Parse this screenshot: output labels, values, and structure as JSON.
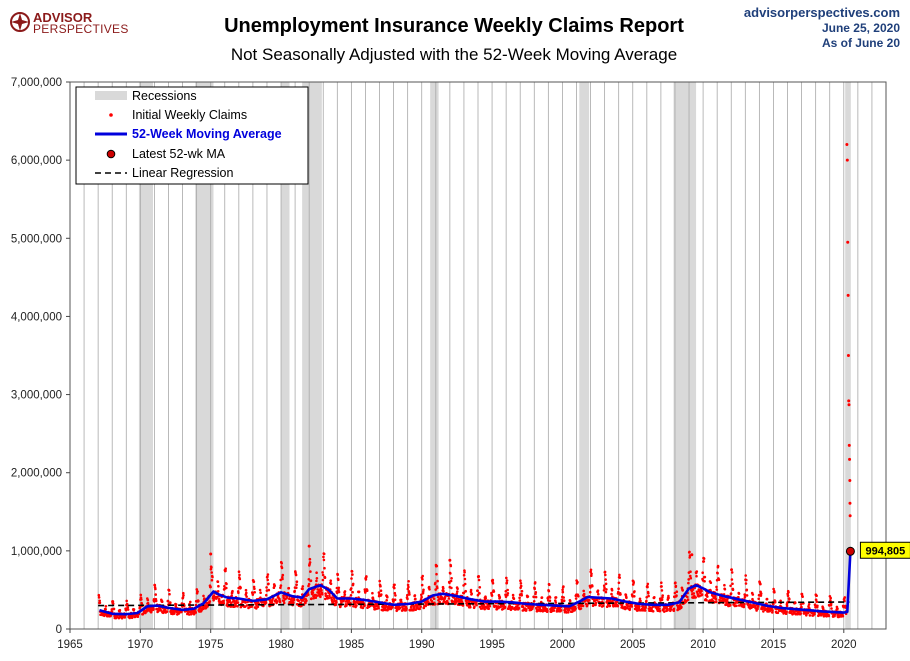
{
  "brand": {
    "logo_line1": "ADVISOR",
    "logo_line2": "PERSPECTIVES",
    "site": "advisorperspectives.com",
    "date": "June 25, 2020",
    "as_of": "As of June 20"
  },
  "colors": {
    "claims_dot": "#ff0000",
    "moving_average": "#0000dd",
    "recession_band": "#d9d9d9",
    "regression_line": "#000000",
    "latest_marker": "#cc0000",
    "callout_fill": "#ffff00",
    "logo": "#8b1a1a"
  },
  "chart_data": {
    "type": "scatter",
    "title": "Unemployment Insurance Weekly Claims Report",
    "subtitle": "Not Seasonally Adjusted with the 52-Week Moving Average",
    "xlim": [
      1965,
      2023
    ],
    "ylim": [
      0,
      7000000
    ],
    "x_ticks": [
      1965,
      1970,
      1975,
      1980,
      1985,
      1990,
      1995,
      2000,
      2005,
      2010,
      2015,
      2020
    ],
    "y_ticks": [
      0,
      1000000,
      2000000,
      3000000,
      4000000,
      5000000,
      6000000,
      7000000
    ],
    "y_tick_labels": [
      "0",
      "1,000,000",
      "2,000,000",
      "3,000,000",
      "4,000,000",
      "5,000,000",
      "6,000,000",
      "7,000,000"
    ],
    "grid": "vertical-annual",
    "legend_position": "top-left",
    "legend": [
      {
        "label": "Recessions",
        "symbol": "band"
      },
      {
        "label": "Initial Weekly Claims",
        "symbol": "dot"
      },
      {
        "label": "52-Week Moving Average",
        "symbol": "line"
      },
      {
        "label": "Latest 52-wk MA",
        "symbol": "marker"
      },
      {
        "label": "Linear Regression",
        "symbol": "dashed"
      }
    ],
    "recessions": [
      [
        1969.9,
        1970.9
      ],
      [
        1973.9,
        1975.2
      ],
      [
        1980.0,
        1980.6
      ],
      [
        1981.5,
        1982.9
      ],
      [
        1990.6,
        1991.2
      ],
      [
        2001.2,
        2001.9
      ],
      [
        2007.9,
        2009.5
      ],
      [
        2020.1,
        2020.5
      ]
    ],
    "moving_average": {
      "name": "52-Week Moving Average",
      "x": [
        1967.1,
        1968.0,
        1969.0,
        1969.8,
        1970.5,
        1971.2,
        1972.0,
        1973.0,
        1973.8,
        1974.5,
        1975.2,
        1975.6,
        1976.2,
        1977.0,
        1978.0,
        1979.0,
        1980.0,
        1980.8,
        1981.5,
        1982.0,
        1982.8,
        1983.4,
        1984.0,
        1985.0,
        1986.0,
        1987.0,
        1988.0,
        1989.0,
        1990.0,
        1990.8,
        1991.5,
        1992.5,
        1993.5,
        1994.5,
        1995.5,
        1996.5,
        1997.5,
        1998.5,
        1999.5,
        2000.5,
        2001.2,
        2001.8,
        2002.5,
        2003.5,
        2004.5,
        2005.5,
        2006.5,
        2007.5,
        2008.3,
        2009.0,
        2009.5,
        2010.0,
        2010.5,
        2011.5,
        2012.5,
        2013.5,
        2014.5,
        2015.5,
        2016.5,
        2017.5,
        2018.5,
        2019.5,
        2020.0,
        2020.25,
        2020.47
      ],
      "y": [
        240000,
        195000,
        190000,
        205000,
        290000,
        300000,
        270000,
        245000,
        260000,
        330000,
        480000,
        440000,
        400000,
        390000,
        360000,
        380000,
        470000,
        420000,
        400000,
        510000,
        560000,
        500000,
        390000,
        390000,
        370000,
        340000,
        310000,
        320000,
        350000,
        430000,
        450000,
        420000,
        380000,
        350000,
        350000,
        340000,
        320000,
        310000,
        300000,
        290000,
        350000,
        410000,
        400000,
        390000,
        350000,
        320000,
        310000,
        310000,
        340000,
        520000,
        560000,
        520000,
        470000,
        420000,
        380000,
        340000,
        300000,
        270000,
        255000,
        240000,
        225000,
        215000,
        210000,
        220000,
        994805
      ]
    },
    "regression": {
      "name": "Linear Regression",
      "x": [
        1967.0,
        2020.4
      ],
      "y": [
        300000,
        345000
      ]
    },
    "latest": {
      "x": 2020.47,
      "y": 994805,
      "label": "994,805"
    },
    "claims_spikes": {
      "name": "Initial Weekly Claims",
      "x": [
        1975.0,
        1982.0,
        1992.0,
        2009.2,
        2020.22,
        2020.25,
        2020.28,
        2020.31,
        2020.33,
        2020.35,
        2020.37,
        2020.39,
        2020.41,
        2020.43,
        2020.44,
        2020.45
      ],
      "y": [
        960000,
        1060000,
        880000,
        950000,
        6200000,
        6000000,
        4950000,
        4270000,
        3500000,
        2920000,
        2870000,
        2350000,
        2170000,
        1900000,
        1610000,
        1450000
      ]
    }
  }
}
